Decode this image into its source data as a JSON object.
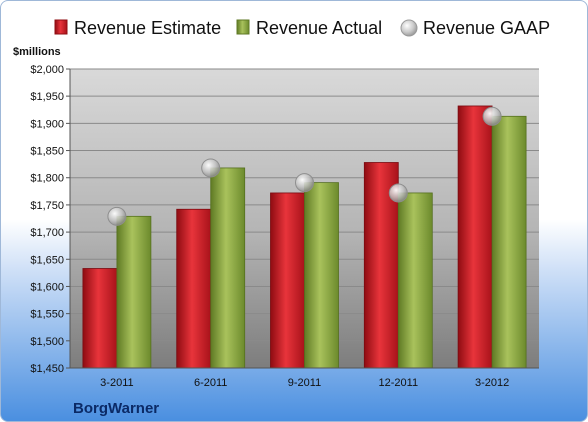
{
  "chart_data": {
    "type": "bar",
    "company": "BorgWarner",
    "ylabel": "$millions",
    "ylim": [
      1450,
      2000
    ],
    "yticks": [
      1450,
      1500,
      1550,
      1600,
      1650,
      1700,
      1750,
      1800,
      1850,
      1900,
      1950,
      2000
    ],
    "ytick_labels": [
      "$1,450",
      "$1,500",
      "$1,550",
      "$1,600",
      "$1,650",
      "$1,700",
      "$1,750",
      "$1,800",
      "$1,850",
      "$1,900",
      "$1,950",
      "$2,000"
    ],
    "categories": [
      "3-2011",
      "6-2011",
      "9-2011",
      "12-2011",
      "3-2012"
    ],
    "series": [
      {
        "name": "Revenue Estimate",
        "kind": "bar",
        "color": "#cc1b22",
        "values": [
          1633,
          1742,
          1772,
          1828,
          1932
        ]
      },
      {
        "name": "Revenue Actual",
        "kind": "bar",
        "color": "#86a040",
        "values": [
          1729,
          1818,
          1791,
          1772,
          1913
        ]
      },
      {
        "name": "Revenue GAAP",
        "kind": "marker",
        "color": "#b8b8b8",
        "values": [
          1729,
          1818,
          1791,
          1772,
          1913
        ]
      }
    ],
    "legend_position": "top",
    "grid": true
  }
}
